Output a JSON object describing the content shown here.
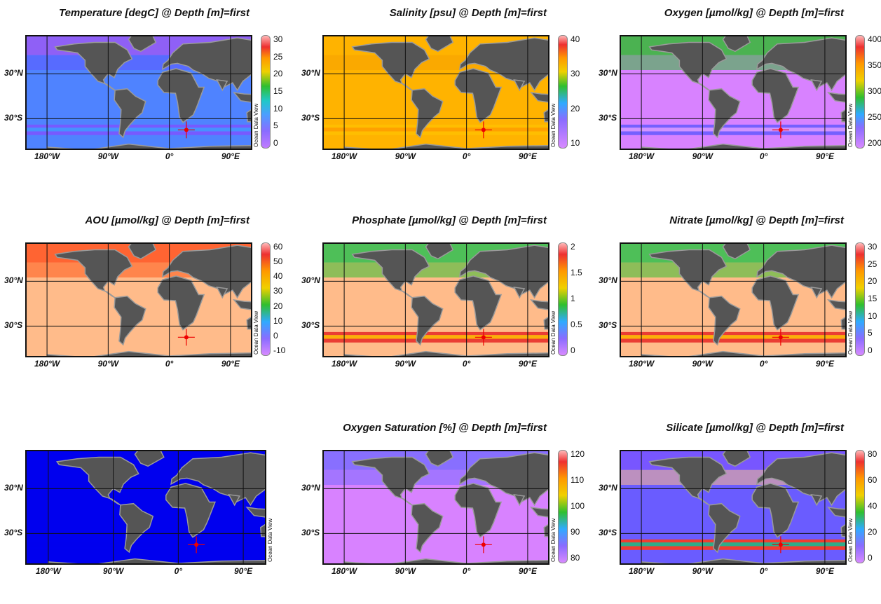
{
  "panels": [
    {
      "id": "temperature",
      "title": "Temperature [degC] @ Depth [m]=first",
      "cbar_ticks": [
        "30",
        "25",
        "20",
        "15",
        "10",
        "5",
        "0"
      ],
      "colors": {
        "ocean": "#4f83ff",
        "north": "#5e57ff",
        "south": "#7b55ff",
        "band": "#3aa0ff",
        "top_band": "#9a5af5"
      }
    },
    {
      "id": "salinity",
      "title": "Salinity [psu] @ Depth [m]=first",
      "cbar_ticks": [
        "40",
        "30",
        "20",
        "10"
      ],
      "colors": {
        "ocean": "#ffb300",
        "north": "#f5a000",
        "south": "#ffbf00",
        "band": "#ff9900",
        "top_band": "#ffb300"
      }
    },
    {
      "id": "oxygen",
      "title": "Oxygen [µmol/kg] @ Depth [m]=first",
      "cbar_ticks": [
        "400",
        "350",
        "300",
        "250",
        "200"
      ],
      "colors": {
        "ocean": "#d882ff",
        "north": "#30c030",
        "south": "#6a5cff",
        "band": "#eaa0ff",
        "top_band": "#33bb33"
      }
    },
    {
      "id": "aou",
      "title": "AOU [µmol/kg] @ Depth [m]=first",
      "cbar_ticks": [
        "60",
        "50",
        "40",
        "30",
        "20",
        "10",
        "0",
        "-10"
      ],
      "colors": {
        "ocean": "#ffbb8a",
        "north": "#ff5a1a",
        "south": "#ffbb8a",
        "band": "#ffbb8a",
        "top_band": "#ff5522"
      }
    },
    {
      "id": "phosphate",
      "title": "Phosphate [µmol/kg] @ Depth [m]=first",
      "cbar_ticks": [
        "2",
        "1.5",
        "1",
        "0.5",
        "0"
      ],
      "colors": {
        "ocean": "#ffbb8a",
        "north": "#32c032",
        "south": "#e8302a",
        "band": "#ffcc00",
        "top_band": "#2fbf4f"
      }
    },
    {
      "id": "nitrate",
      "title": "Nitrate [µmol/kg] @ Depth [m]=first",
      "cbar_ticks": [
        "30",
        "25",
        "20",
        "15",
        "10",
        "5",
        "0"
      ],
      "colors": {
        "ocean": "#ffbb8a",
        "north": "#32c032",
        "south": "#e8302a",
        "band": "#ffcc00",
        "top_band": "#2fbf4f"
      }
    },
    {
      "id": "unknown",
      "title": "",
      "cbar_ticks": [],
      "colors": {
        "ocean": "#0000ee",
        "north": "#0000ee",
        "south": "#0000ee",
        "band": "#0000ee",
        "top_band": "#0000ee"
      }
    },
    {
      "id": "oxygen-saturation",
      "title": "Oxygen Saturation [%] @ Depth [m]=first",
      "cbar_ticks": [
        "120",
        "110",
        "100",
        "90",
        "80"
      ],
      "colors": {
        "ocean": "#d882ff",
        "north": "#7a6cff",
        "south": "#d882ff",
        "band": "#d882ff",
        "top_band": "#7a6cff"
      }
    },
    {
      "id": "silicate",
      "title": "Silicate [µmol/kg] @ Depth [m]=first",
      "cbar_ticks": [
        "80",
        "60",
        "40",
        "20",
        "0"
      ],
      "colors": {
        "ocean": "#6a5cff",
        "north": "#ffbb8a",
        "south": "#ff3a1a",
        "band": "#00c8a0",
        "top_band": "#7a55ff"
      }
    }
  ],
  "axes": {
    "lat_labels": [
      "30°N",
      "30°S"
    ],
    "lon_labels": [
      "180°W",
      "90°W",
      "0°",
      "90°E"
    ]
  },
  "watermark": "Ocean Data View",
  "station_marker": {
    "lon": 25,
    "lat": -45,
    "color": "#ee0000"
  },
  "land_color": "#555555",
  "shelf_color": "#9a9a9a"
}
